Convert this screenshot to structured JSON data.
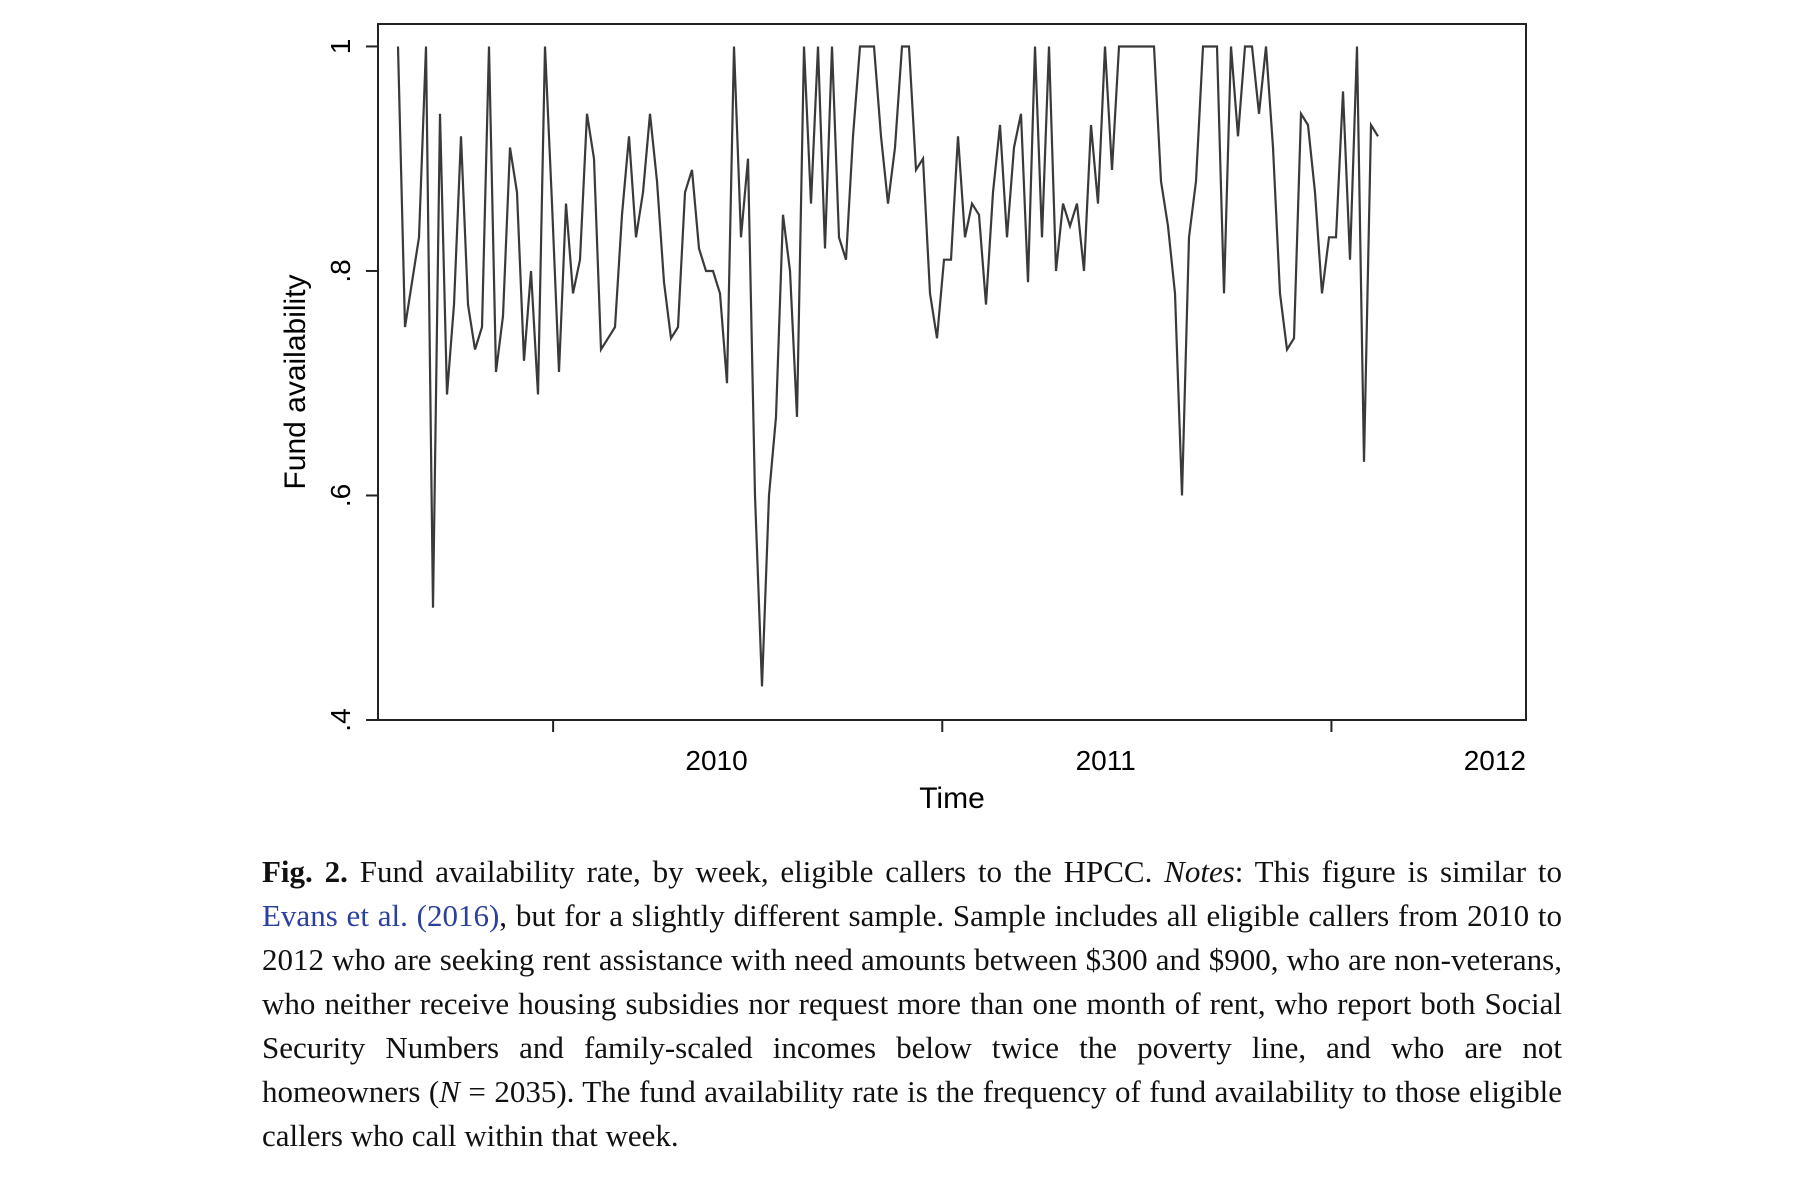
{
  "chart_data": {
    "type": "line",
    "xlabel": "Time",
    "ylabel": "Fund availability",
    "x_ticks": [
      "2010",
      "2011",
      "2012"
    ],
    "x_unit": "year",
    "xlim": [
      2009.55,
      2012.5
    ],
    "ylim": [
      0.4,
      1.02
    ],
    "y_ticks": [
      {
        "value": 0.4,
        "label": ".4"
      },
      {
        "value": 0.6,
        "label": ".6"
      },
      {
        "value": 0.8,
        "label": ".8"
      },
      {
        "value": 1.0,
        "label": "1"
      }
    ],
    "grid": false,
    "series": [
      {
        "values": [
          1,
          0.75,
          0.79,
          0.83,
          1,
          0.5,
          0.94,
          0.69,
          0.77,
          0.92,
          0.77,
          0.73,
          0.75,
          1,
          0.71,
          0.76,
          0.91,
          0.87,
          0.72,
          0.8,
          0.69,
          1,
          0.86,
          0.71,
          0.86,
          0.78,
          0.81,
          0.94,
          0.9,
          0.73,
          0.74,
          0.75,
          0.85,
          0.92,
          0.83,
          0.87,
          0.94,
          0.88,
          0.79,
          0.74,
          0.75,
          0.87,
          0.89,
          0.82,
          0.8,
          0.8,
          0.78,
          0.7,
          1,
          0.83,
          0.9,
          0.6,
          0.43,
          0.6,
          0.67,
          0.85,
          0.8,
          0.67,
          1,
          0.86,
          1,
          0.82,
          1,
          0.83,
          0.81,
          0.92,
          1,
          1,
          1,
          0.92,
          0.86,
          0.91,
          1,
          1,
          0.89,
          0.9,
          0.78,
          0.74,
          0.81,
          0.81,
          0.92,
          0.83,
          0.86,
          0.85,
          0.77,
          0.87,
          0.93,
          0.83,
          0.91,
          0.94,
          0.79,
          1,
          0.83,
          1,
          0.8,
          0.86,
          0.84,
          0.86,
          0.8,
          0.93,
          0.86,
          1,
          0.89,
          1,
          1,
          1,
          1,
          1,
          1,
          0.88,
          0.84,
          0.78,
          0.6,
          0.83,
          0.88,
          1,
          1,
          1,
          0.78,
          1,
          0.92,
          1,
          1,
          0.94,
          1,
          0.91,
          0.78,
          0.73,
          0.74,
          0.94,
          0.93,
          0.87,
          0.78,
          0.83,
          0.83,
          0.96,
          0.81,
          1,
          0.63,
          0.93,
          0.92
        ],
        "color": "#3a3a3a"
      }
    ]
  },
  "caption": {
    "fig_label": "Fig. 2.",
    "text_1": " Fund availability rate, by week, eligible callers to the HPCC. ",
    "notes_label": "Notes",
    "text_2": ": This figure is similar to ",
    "citation": "Evans et al. (2016)",
    "text_3": ", but for a slightly different sample. Sample includes all eligible callers from 2010 to 2012 who are seeking rent assistance with need amounts between $300 and $900, who are non-veterans, who neither receive housing subsidies nor request more than one month of rent, who report both Social Security Numbers and family-scaled incomes below twice the poverty line, and who are not homeowners (",
    "n_var": "N",
    "text_4": " = 2035). The fund availability rate is the frequency of fund availability to those eligible callers who call within that week."
  }
}
